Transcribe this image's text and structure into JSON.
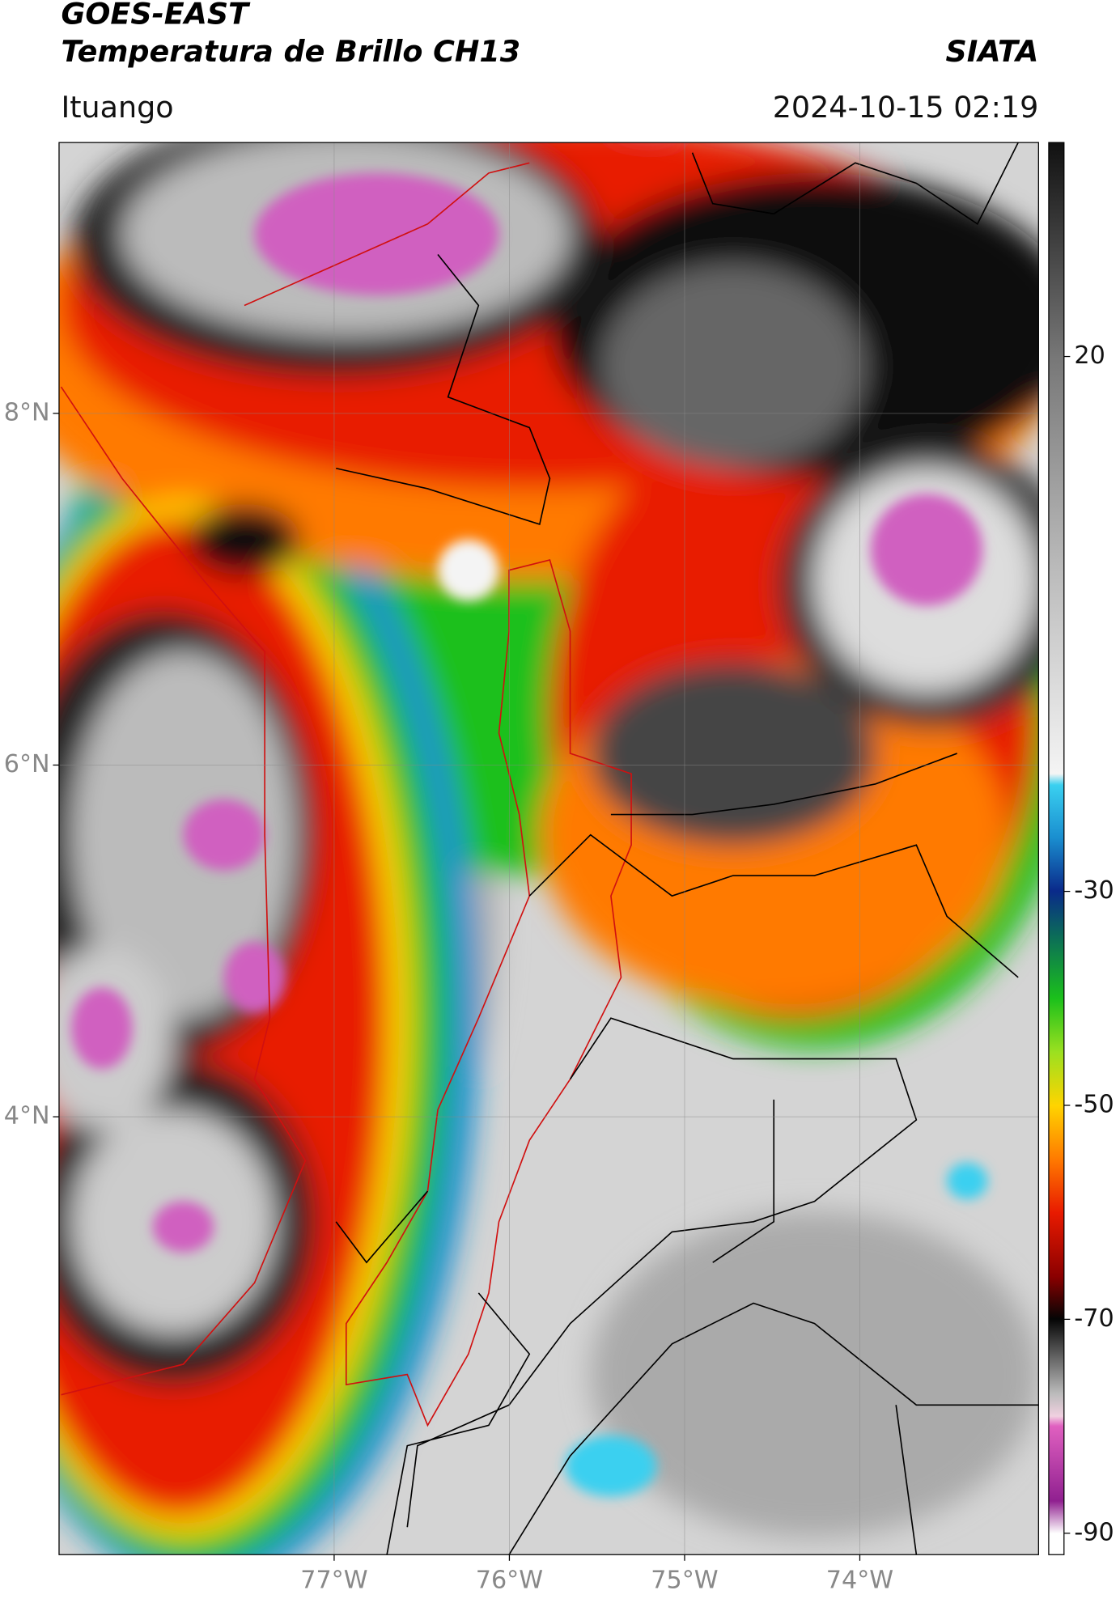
{
  "header": {
    "title": "GOES-EAST",
    "subtitle": "Temperatura de Brillo CH13",
    "source": "SIATA",
    "location": "Ituango",
    "datetime": "2024-10-15 02:19"
  },
  "map": {
    "xlim": [
      -78.57,
      -72.98
    ],
    "ylim": [
      1.51,
      9.54
    ],
    "xticks": [
      {
        "value": -77,
        "label": "77°W"
      },
      {
        "value": -76,
        "label": "76°W"
      },
      {
        "value": -75,
        "label": "75°W"
      },
      {
        "value": -74,
        "label": "74°W"
      }
    ],
    "yticks": [
      {
        "value": 8,
        "label": "8°N"
      },
      {
        "value": 6,
        "label": "6°N"
      },
      {
        "value": 4,
        "label": "4°N"
      }
    ],
    "grid": true
  },
  "colorbar": {
    "lim": [
      -92,
      40
    ],
    "ticks": [
      20,
      -30,
      -50,
      -70,
      -90
    ]
  }
}
